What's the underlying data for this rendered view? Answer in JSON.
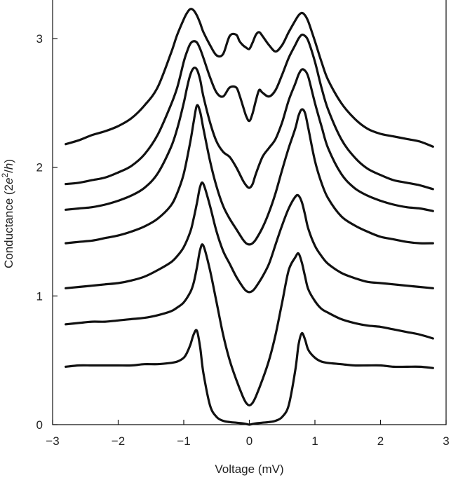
{
  "chart_data": {
    "type": "line",
    "title": "",
    "xlabel": "Voltage (mV)",
    "ylabel": "Conductance (2e²/h)",
    "ylabel_parts": {
      "prefix": "Conductance (2",
      "e": "e",
      "sup": "2",
      "slash": "/",
      "h": "h",
      "suffix": ")"
    },
    "xlim": [
      -3,
      3
    ],
    "ylim": [
      0,
      3.3
    ],
    "xticks": [
      -3,
      -2,
      -1,
      0,
      1,
      2,
      3
    ],
    "xtick_labels": [
      "−3",
      "−2",
      "−1",
      "0",
      "1",
      "2",
      "3"
    ],
    "yticks": [
      0,
      1,
      2,
      3
    ],
    "ytick_labels": [
      "0",
      "1",
      "2",
      "3"
    ],
    "grid": false,
    "legend": "none",
    "line_color": "#111111",
    "series": [
      {
        "x": [
          -2.8,
          -2.6,
          -2.4,
          -2.2,
          -2.0,
          -1.8,
          -1.6,
          -1.4,
          -1.2,
          -1.1,
          -1.0,
          -0.95,
          -0.9,
          -0.85,
          -0.8,
          -0.75,
          -0.7,
          -0.6,
          -0.5,
          -0.4,
          -0.3,
          -0.2,
          -0.1,
          -0.05,
          0.0,
          0.05,
          0.1,
          0.2,
          0.3,
          0.4,
          0.5,
          0.6,
          0.7,
          0.75,
          0.8,
          0.85,
          0.9,
          1.0,
          1.1,
          1.2,
          1.4,
          1.6,
          1.8,
          2.0,
          2.2,
          2.4,
          2.6,
          2.8
        ],
        "y": [
          0.45,
          0.46,
          0.46,
          0.46,
          0.46,
          0.46,
          0.47,
          0.47,
          0.48,
          0.49,
          0.52,
          0.56,
          0.62,
          0.7,
          0.73,
          0.6,
          0.4,
          0.15,
          0.06,
          0.03,
          0.02,
          0.015,
          0.01,
          0.005,
          0.0,
          0.005,
          0.01,
          0.015,
          0.02,
          0.03,
          0.06,
          0.15,
          0.42,
          0.62,
          0.71,
          0.66,
          0.58,
          0.52,
          0.49,
          0.48,
          0.47,
          0.46,
          0.46,
          0.46,
          0.45,
          0.45,
          0.45,
          0.44
        ]
      },
      {
        "x": [
          -2.8,
          -2.6,
          -2.4,
          -2.2,
          -2.0,
          -1.8,
          -1.6,
          -1.4,
          -1.2,
          -1.1,
          -1.0,
          -0.9,
          -0.85,
          -0.8,
          -0.75,
          -0.7,
          -0.6,
          -0.5,
          -0.4,
          -0.3,
          -0.2,
          -0.1,
          -0.05,
          0.0,
          0.05,
          0.1,
          0.2,
          0.3,
          0.4,
          0.5,
          0.6,
          0.7,
          0.75,
          0.8,
          0.85,
          0.9,
          1.0,
          1.1,
          1.2,
          1.4,
          1.6,
          1.8,
          2.0,
          2.2,
          2.4,
          2.6,
          2.8
        ],
        "y": [
          0.78,
          0.79,
          0.8,
          0.8,
          0.81,
          0.82,
          0.83,
          0.85,
          0.88,
          0.91,
          0.95,
          1.03,
          1.1,
          1.22,
          1.36,
          1.39,
          1.2,
          0.95,
          0.7,
          0.5,
          0.35,
          0.22,
          0.17,
          0.15,
          0.17,
          0.22,
          0.35,
          0.5,
          0.7,
          0.95,
          1.2,
          1.3,
          1.33,
          1.26,
          1.15,
          1.05,
          0.96,
          0.9,
          0.87,
          0.82,
          0.79,
          0.77,
          0.76,
          0.74,
          0.72,
          0.7,
          0.67
        ]
      },
      {
        "x": [
          -2.8,
          -2.6,
          -2.4,
          -2.2,
          -2.0,
          -1.8,
          -1.6,
          -1.4,
          -1.2,
          -1.1,
          -1.0,
          -0.9,
          -0.85,
          -0.8,
          -0.75,
          -0.7,
          -0.6,
          -0.5,
          -0.4,
          -0.3,
          -0.2,
          -0.1,
          -0.05,
          0.0,
          0.05,
          0.1,
          0.2,
          0.3,
          0.4,
          0.5,
          0.6,
          0.7,
          0.75,
          0.8,
          0.85,
          0.9,
          1.0,
          1.1,
          1.2,
          1.4,
          1.6,
          1.8,
          2.0,
          2.2,
          2.4,
          2.6,
          2.8
        ],
        "y": [
          1.06,
          1.07,
          1.08,
          1.09,
          1.1,
          1.12,
          1.15,
          1.2,
          1.26,
          1.31,
          1.38,
          1.5,
          1.6,
          1.72,
          1.85,
          1.87,
          1.7,
          1.5,
          1.35,
          1.25,
          1.15,
          1.07,
          1.04,
          1.03,
          1.04,
          1.07,
          1.15,
          1.25,
          1.4,
          1.55,
          1.68,
          1.77,
          1.78,
          1.73,
          1.63,
          1.52,
          1.39,
          1.31,
          1.25,
          1.18,
          1.14,
          1.11,
          1.1,
          1.09,
          1.08,
          1.07,
          1.06
        ]
      },
      {
        "x": [
          -2.8,
          -2.6,
          -2.4,
          -2.2,
          -2.0,
          -1.8,
          -1.6,
          -1.4,
          -1.2,
          -1.1,
          -1.0,
          -0.9,
          -0.85,
          -0.8,
          -0.75,
          -0.7,
          -0.6,
          -0.5,
          -0.4,
          -0.3,
          -0.2,
          -0.1,
          -0.05,
          0.0,
          0.05,
          0.1,
          0.2,
          0.3,
          0.4,
          0.5,
          0.6,
          0.7,
          0.75,
          0.8,
          0.85,
          0.9,
          1.0,
          1.1,
          1.2,
          1.4,
          1.6,
          1.8,
          2.0,
          2.2,
          2.4,
          2.6,
          2.8
        ],
        "y": [
          1.41,
          1.42,
          1.43,
          1.45,
          1.47,
          1.5,
          1.54,
          1.6,
          1.7,
          1.8,
          1.95,
          2.2,
          2.35,
          2.48,
          2.43,
          2.3,
          2.05,
          1.85,
          1.7,
          1.6,
          1.52,
          1.44,
          1.41,
          1.4,
          1.41,
          1.44,
          1.53,
          1.65,
          1.8,
          1.98,
          2.15,
          2.3,
          2.4,
          2.45,
          2.42,
          2.3,
          2.05,
          1.88,
          1.76,
          1.62,
          1.55,
          1.5,
          1.46,
          1.44,
          1.42,
          1.41,
          1.41
        ]
      },
      {
        "x": [
          -2.8,
          -2.6,
          -2.4,
          -2.2,
          -2.0,
          -1.8,
          -1.6,
          -1.4,
          -1.2,
          -1.1,
          -1.0,
          -0.95,
          -0.9,
          -0.85,
          -0.8,
          -0.75,
          -0.7,
          -0.6,
          -0.5,
          -0.4,
          -0.3,
          -0.2,
          -0.1,
          -0.05,
          0.0,
          0.05,
          0.1,
          0.2,
          0.3,
          0.4,
          0.5,
          0.6,
          0.7,
          0.75,
          0.8,
          0.85,
          0.9,
          1.0,
          1.1,
          1.2,
          1.4,
          1.6,
          1.8,
          2.0,
          2.2,
          2.4,
          2.6,
          2.8
        ],
        "y": [
          1.67,
          1.68,
          1.69,
          1.71,
          1.74,
          1.78,
          1.84,
          1.95,
          2.15,
          2.3,
          2.5,
          2.62,
          2.72,
          2.77,
          2.76,
          2.68,
          2.55,
          2.35,
          2.2,
          2.12,
          2.08,
          2.0,
          1.9,
          1.86,
          1.84,
          1.87,
          1.95,
          2.08,
          2.15,
          2.22,
          2.35,
          2.52,
          2.65,
          2.72,
          2.76,
          2.75,
          2.7,
          2.5,
          2.32,
          2.15,
          1.95,
          1.84,
          1.78,
          1.74,
          1.71,
          1.69,
          1.68,
          1.66
        ]
      },
      {
        "x": [
          -2.8,
          -2.6,
          -2.4,
          -2.2,
          -2.0,
          -1.8,
          -1.6,
          -1.4,
          -1.2,
          -1.1,
          -1.0,
          -0.95,
          -0.9,
          -0.85,
          -0.8,
          -0.75,
          -0.7,
          -0.6,
          -0.5,
          -0.4,
          -0.3,
          -0.2,
          -0.15,
          -0.1,
          -0.05,
          0.0,
          0.05,
          0.1,
          0.15,
          0.2,
          0.3,
          0.4,
          0.5,
          0.6,
          0.7,
          0.75,
          0.8,
          0.85,
          0.9,
          1.0,
          1.1,
          1.2,
          1.4,
          1.6,
          1.8,
          2.0,
          2.2,
          2.4,
          2.6,
          2.8
        ],
        "y": [
          1.87,
          1.88,
          1.9,
          1.92,
          1.96,
          2.01,
          2.1,
          2.25,
          2.48,
          2.62,
          2.82,
          2.9,
          2.96,
          2.98,
          2.97,
          2.92,
          2.85,
          2.7,
          2.58,
          2.55,
          2.62,
          2.62,
          2.56,
          2.48,
          2.4,
          2.36,
          2.42,
          2.52,
          2.6,
          2.58,
          2.55,
          2.6,
          2.72,
          2.85,
          2.95,
          3.0,
          3.03,
          3.02,
          2.98,
          2.82,
          2.62,
          2.45,
          2.22,
          2.08,
          1.99,
          1.94,
          1.9,
          1.88,
          1.86,
          1.83
        ]
      },
      {
        "x": [
          -2.8,
          -2.6,
          -2.4,
          -2.2,
          -2.0,
          -1.8,
          -1.6,
          -1.4,
          -1.2,
          -1.1,
          -1.0,
          -0.95,
          -0.9,
          -0.85,
          -0.8,
          -0.75,
          -0.7,
          -0.6,
          -0.5,
          -0.4,
          -0.3,
          -0.2,
          -0.15,
          -0.1,
          -0.05,
          0.0,
          0.05,
          0.1,
          0.15,
          0.2,
          0.3,
          0.4,
          0.5,
          0.6,
          0.7,
          0.75,
          0.8,
          0.85,
          0.9,
          1.0,
          1.1,
          1.2,
          1.4,
          1.6,
          1.8,
          2.0,
          2.2,
          2.4,
          2.6,
          2.8
        ],
        "y": [
          2.18,
          2.21,
          2.25,
          2.28,
          2.32,
          2.38,
          2.48,
          2.62,
          2.88,
          3.03,
          3.15,
          3.2,
          3.23,
          3.22,
          3.18,
          3.12,
          3.05,
          2.95,
          2.87,
          2.88,
          3.02,
          3.03,
          2.98,
          2.95,
          2.93,
          2.92,
          2.97,
          3.03,
          3.05,
          3.02,
          2.95,
          2.9,
          2.95,
          3.05,
          3.14,
          3.18,
          3.2,
          3.18,
          3.13,
          2.98,
          2.82,
          2.68,
          2.5,
          2.38,
          2.3,
          2.26,
          2.24,
          2.22,
          2.2,
          2.16
        ]
      }
    ]
  }
}
